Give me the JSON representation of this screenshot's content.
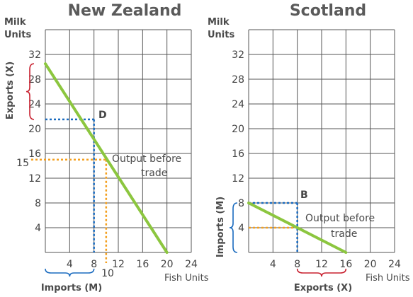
{
  "colors": {
    "line": "#8cc63f",
    "imports": "#1a6bbf",
    "exports": "#c8202f",
    "guide_orange": "#f4a020",
    "guide_blue": "#1a6bbf",
    "grid": "#555555"
  },
  "chart_data": [
    {
      "type": "line",
      "title": "New Zealand",
      "ylabel_line1": "Milk",
      "ylabel_line2": "Units",
      "xlabel": "Fish Units",
      "xlim": [
        0,
        24
      ],
      "ylim": [
        0,
        36
      ],
      "x_ticks": [
        "4",
        "8",
        "12",
        "16",
        "20",
        "24"
      ],
      "y_ticks": [
        "4",
        "8",
        "12",
        "16",
        "20",
        "24",
        "28",
        "32"
      ],
      "series": [
        {
          "x": [
            0,
            20
          ],
          "y": [
            30.5,
            0
          ]
        }
      ],
      "point_label": "D",
      "point_d": {
        "x": 8,
        "y": 21.5
      },
      "guide_orange": {
        "x": 10,
        "y": 15
      },
      "extra_x_label": "10",
      "extra_y_label": "15",
      "annotation": [
        "Output before",
        "trade"
      ],
      "exports_label": "Exports (X)",
      "imports_label": "Imports (M)"
    },
    {
      "type": "line",
      "title": "Scotland",
      "ylabel_line1": "Milk",
      "ylabel_line2": "Units",
      "xlabel": "Fish Units",
      "xlim": [
        0,
        24
      ],
      "ylim": [
        0,
        36
      ],
      "x_ticks": [
        "4",
        "8",
        "12",
        "16",
        "20",
        "24"
      ],
      "y_ticks": [
        "4",
        "8",
        "12",
        "16",
        "20",
        "24",
        "28",
        "32"
      ],
      "series": [
        {
          "x": [
            0,
            16
          ],
          "y": [
            8,
            0
          ]
        }
      ],
      "point_label": "B",
      "point_b": {
        "x": 8,
        "y": 8
      },
      "guide_orange": {
        "x": 8,
        "y": 4
      },
      "annotation": [
        "Output before",
        "trade"
      ],
      "imports_label": "Imports (M)",
      "exports_label": "Exports (X)"
    }
  ]
}
